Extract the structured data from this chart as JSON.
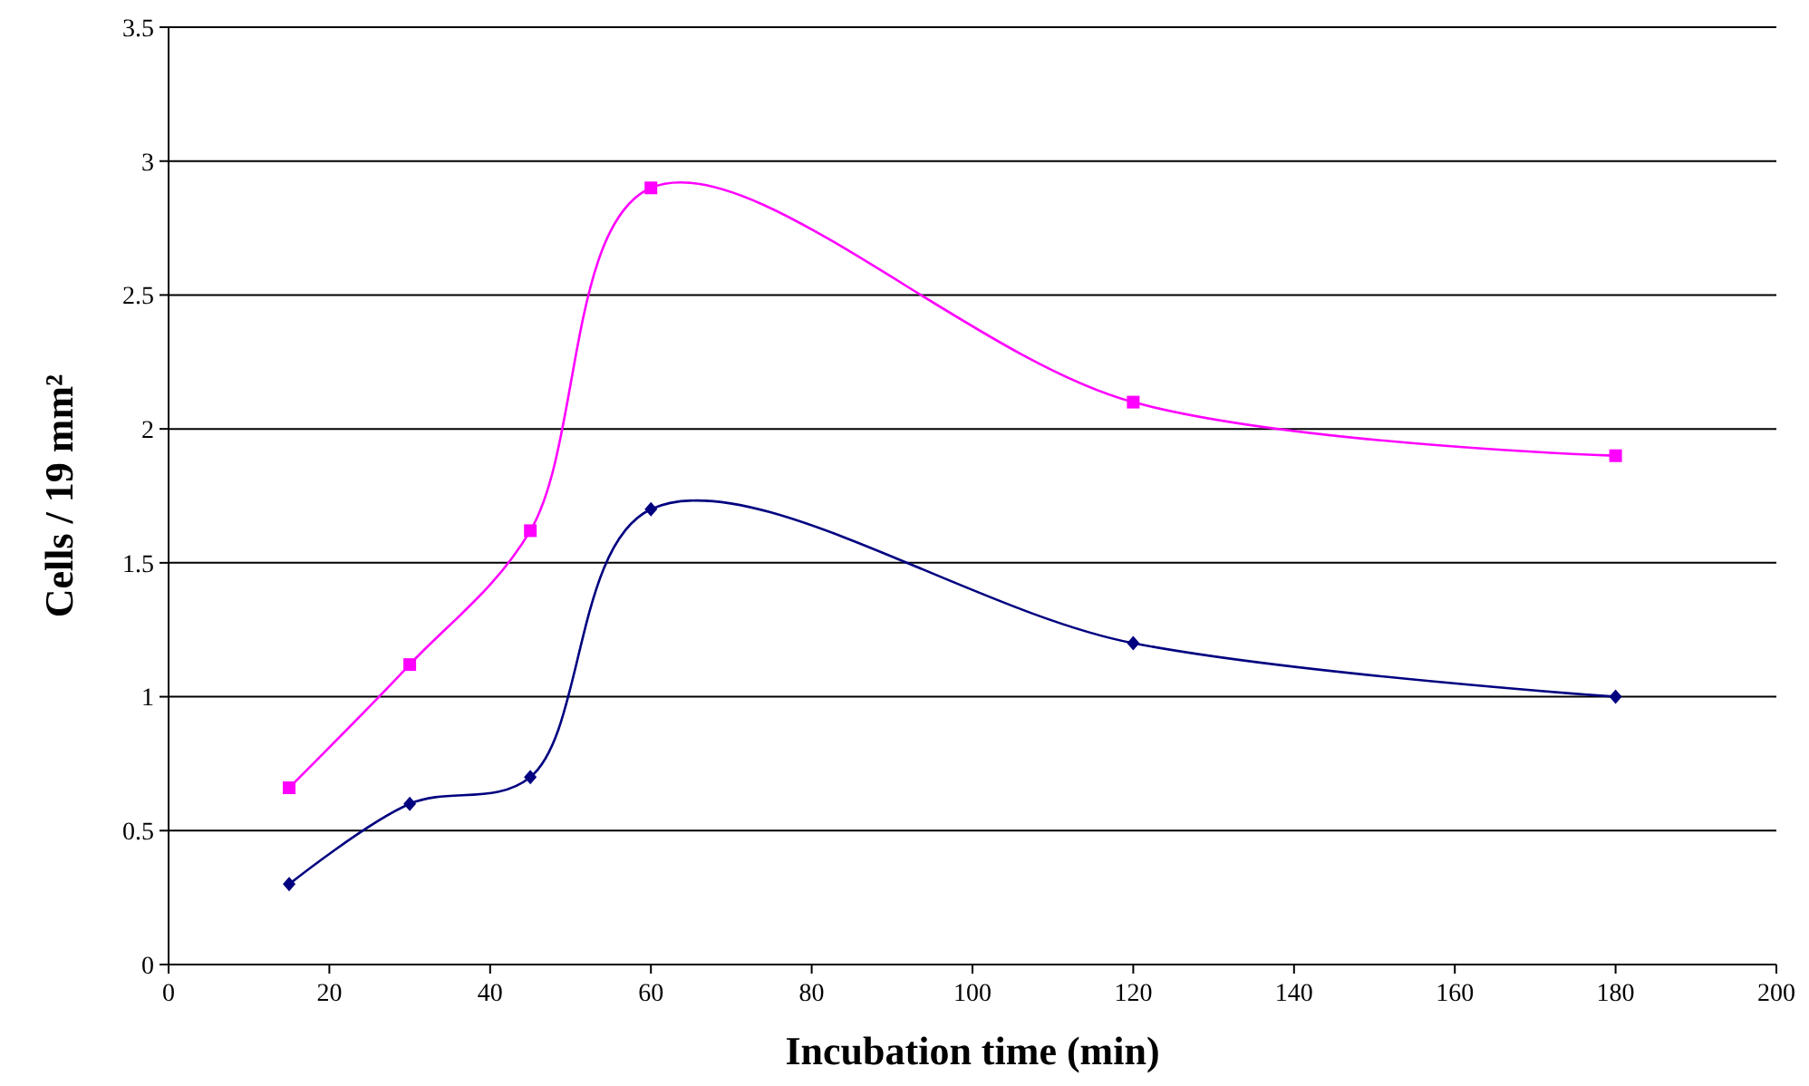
{
  "chart_data": {
    "type": "line",
    "xlabel": "Incubation time (min)",
    "ylabel": "Cells / 19 mm²",
    "x": [
      15,
      30,
      45,
      60,
      120,
      180
    ],
    "series": [
      {
        "color": "#ff00ff",
        "marker": "square",
        "values": [
          0.66,
          1.12,
          1.62,
          2.9,
          2.1,
          1.9
        ]
      },
      {
        "color": "#000080",
        "marker": "diamond",
        "values": [
          0.3,
          0.6,
          0.7,
          1.7,
          1.2,
          1.0
        ]
      }
    ],
    "xlim": [
      0,
      200
    ],
    "xticks": [
      0,
      20,
      40,
      60,
      80,
      100,
      120,
      140,
      160,
      180,
      200
    ],
    "ylim": [
      0,
      3.5
    ],
    "yticks": [
      0,
      {
        "value": 0.5,
        "label": "0.5"
      },
      1,
      {
        "value": 1.5,
        "label": "1.5"
      },
      2,
      {
        "value": 2.5,
        "label": "2.5"
      },
      3,
      {
        "value": 3.5,
        "label": "3.5"
      }
    ],
    "grid": "y",
    "line_style": "solid"
  }
}
